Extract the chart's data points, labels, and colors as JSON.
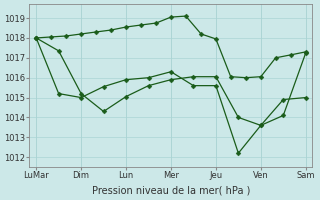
{
  "background_color": "#cce8e8",
  "grid_color": "#aad4d4",
  "line_color": "#1a5c1a",
  "xlabel": "Pression niveau de la mer( hPa )",
  "xtick_labels": [
    "LuMar",
    "Dim",
    "Lun",
    "Mer",
    "Jeu",
    "Ven",
    "Sam"
  ],
  "yticks": [
    1012,
    1013,
    1014,
    1015,
    1016,
    1017,
    1018,
    1019
  ],
  "ylim": [
    1011.5,
    1019.7
  ],
  "xlim": [
    -0.15,
    6.15
  ],
  "series": [
    {
      "x": [
        0,
        0.33,
        0.67,
        1.0,
        1.33,
        1.67,
        2.0,
        2.33,
        2.67,
        3.0,
        3.33,
        3.67,
        4.0,
        4.33,
        4.67,
        5.0,
        5.33,
        5.67,
        6.0
      ],
      "y": [
        1018.0,
        1018.05,
        1018.1,
        1018.2,
        1018.3,
        1018.4,
        1018.55,
        1018.65,
        1018.75,
        1019.05,
        1019.1,
        1018.2,
        1017.95,
        1016.05,
        1016.0,
        1016.05,
        1017.0,
        1017.15,
        1017.3
      ]
    },
    {
      "x": [
        0,
        0.5,
        1.0,
        1.5,
        2.0,
        2.5,
        3.0,
        3.5,
        4.0,
        4.5,
        5.0,
        5.5,
        6.0
      ],
      "y": [
        1018.0,
        1017.35,
        1015.2,
        1014.3,
        1015.05,
        1015.6,
        1015.9,
        1016.05,
        1016.05,
        1014.0,
        1013.6,
        1014.1,
        1017.25
      ]
    },
    {
      "x": [
        0,
        0.5,
        1.0,
        1.5,
        2.0,
        2.5,
        3.0,
        3.5,
        4.0,
        4.5,
        5.0,
        5.5,
        6.0
      ],
      "y": [
        1018.0,
        1015.2,
        1015.0,
        1015.55,
        1015.9,
        1016.0,
        1016.3,
        1015.6,
        1015.6,
        1012.2,
        1013.6,
        1014.9,
        1015.0
      ]
    }
  ],
  "marker": "D",
  "marker_size": 2.5,
  "line_width": 0.9,
  "tick_fontsize": 6,
  "xlabel_fontsize": 7,
  "spine_color": "#888888",
  "tick_color": "#888888",
  "label_color": "#333333"
}
